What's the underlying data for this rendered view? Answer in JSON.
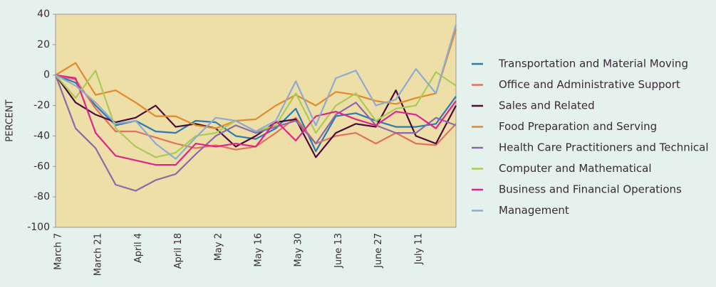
{
  "chart_data": {
    "type": "line",
    "y_label": "PERCENT",
    "categories": [
      "March 7",
      null,
      "March 21",
      null,
      "April 4",
      null,
      "April 18",
      null,
      "May 2",
      null,
      "May 16",
      null,
      "May 30",
      null,
      "June 13",
      null,
      "June 27",
      null,
      "July 11",
      null,
      null
    ],
    "ylim": [
      -100,
      40
    ],
    "yticks": [
      40,
      20,
      0,
      -20,
      -40,
      -60,
      -80,
      -100
    ],
    "series": [
      {
        "name": "Transportation and Material Moving",
        "color": "#2b7bb0",
        "values": [
          0,
          -5,
          -20,
          -33,
          -30,
          -37,
          -38,
          -30,
          -31,
          -40,
          -42,
          -35,
          -22,
          -50,
          -27,
          -25,
          -30,
          -34,
          -34,
          -32,
          -14
        ]
      },
      {
        "name": "Office and Administrative Support",
        "color": "#e0725e",
        "values": [
          0,
          -3,
          -22,
          -37,
          -37,
          -41,
          -45,
          -48,
          -46,
          -49,
          -47,
          -38,
          -28,
          -45,
          -40,
          -38,
          -45,
          -38,
          -45,
          -46,
          -32
        ]
      },
      {
        "name": "Sales and Related",
        "color": "#4a0b3c",
        "values": [
          0,
          -18,
          -26,
          -31,
          -28,
          -20,
          -34,
          -32,
          -35,
          -47,
          -40,
          -31,
          -29,
          -54,
          -38,
          -32,
          -34,
          -10,
          -40,
          -45,
          -20
        ]
      },
      {
        "name": "Food Preparation and Serving",
        "color": "#e08a2a",
        "values": [
          0,
          8,
          -13,
          -10,
          -18,
          -27,
          -27,
          -33,
          -35,
          -30,
          -29,
          -20,
          -13,
          -20,
          -11,
          -13,
          -17,
          -19,
          -15,
          -12,
          30
        ]
      },
      {
        "name": "Health Care Practitioners and Technical",
        "color": "#8a6aa8",
        "values": [
          0,
          -35,
          -48,
          -72,
          -76,
          -69,
          -65,
          -52,
          -40,
          -33,
          -38,
          -34,
          -30,
          -45,
          -26,
          -18,
          -33,
          -38,
          -38,
          -28,
          -33
        ]
      },
      {
        "name": "Computer and Mathematical",
        "color": "#a9cc52",
        "values": [
          0,
          -15,
          3,
          -35,
          -47,
          -54,
          -51,
          -40,
          -38,
          -30,
          -37,
          -33,
          -12,
          -38,
          -20,
          -12,
          -30,
          -22,
          -20,
          2,
          -7
        ]
      },
      {
        "name": "Business and Financial Operations",
        "color": "#e0238c",
        "values": [
          0,
          -2,
          -38,
          -53,
          -56,
          -59,
          -59,
          -45,
          -47,
          -45,
          -47,
          -30,
          -43,
          -27,
          -24,
          -29,
          -33,
          -24,
          -26,
          -35,
          -17
        ]
      },
      {
        "name": "Management",
        "color": "#8cadd0",
        "values": [
          0,
          -7,
          -18,
          -32,
          -30,
          -45,
          -55,
          -41,
          -28,
          -30,
          -37,
          -30,
          -4,
          -33,
          -2,
          3,
          -20,
          -16,
          4,
          -12,
          33
        ]
      }
    ]
  }
}
